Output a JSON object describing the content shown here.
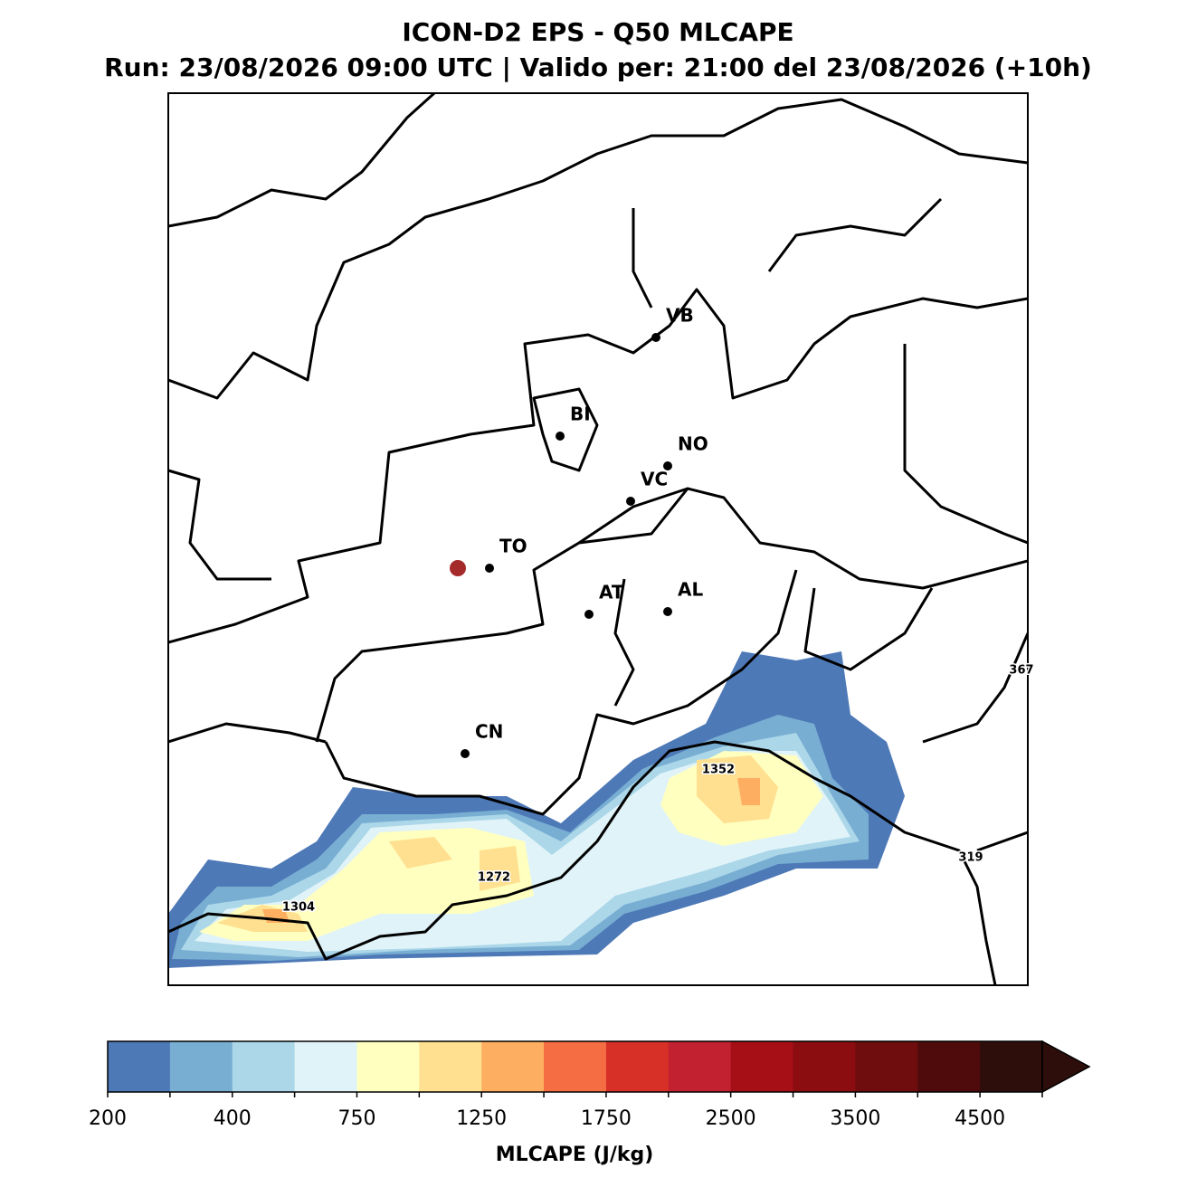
{
  "chart_data": {
    "type": "map",
    "title": "ICON-D2 EPS - Q50 MLCAPE",
    "subtitle": "Run: 23/08/2026 09:00 UTC | Valido per: 21:00 del 23/08/2026 (+10h)",
    "cities": [
      "VB",
      "BI",
      "NO",
      "VC",
      "TO",
      "AT",
      "AL",
      "CN"
    ],
    "contour_labels": [
      367,
      1352,
      319,
      1272,
      1304
    ],
    "colorbar": {
      "label": "MLCAPE (J/kg)",
      "levels": [
        200,
        300,
        400,
        500,
        750,
        1000,
        1250,
        1500,
        1750,
        2000,
        2500,
        3000,
        3500,
        4000,
        4500,
        5000
      ],
      "ticks": [
        200,
        400,
        750,
        1250,
        1750,
        2500,
        3500,
        4500
      ],
      "colors": [
        "#4e79b7",
        "#79aed3",
        "#abd7e9",
        "#e0f3f8",
        "#ffffbf",
        "#fee090",
        "#fdae61",
        "#f46d43",
        "#d73027",
        "#c2212f",
        "#a50f15",
        "#8b0d10",
        "#6e0c0e",
        "#4f0b0b",
        "#2d0e0b"
      ],
      "extend": "max"
    }
  }
}
